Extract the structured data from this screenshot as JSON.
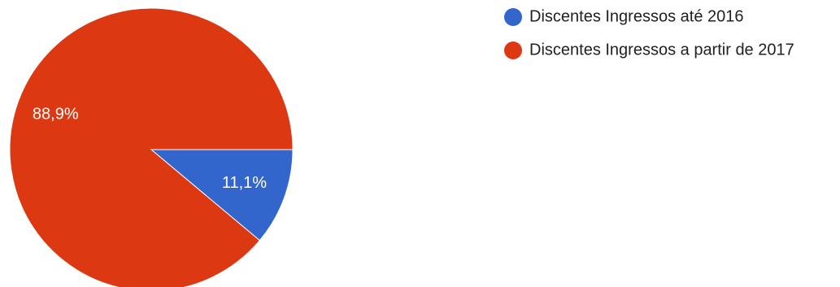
{
  "chart_data": {
    "type": "pie",
    "title": "",
    "legend_position": "top-right",
    "labels": [
      "Discentes Ingressos até 2016",
      "Discentes Ingressos a partir de 2017"
    ],
    "values": [
      11.1,
      88.9
    ],
    "value_labels": [
      "11,1%",
      "88,9%"
    ],
    "colors": [
      "#3366cc",
      "#dc3912"
    ]
  }
}
